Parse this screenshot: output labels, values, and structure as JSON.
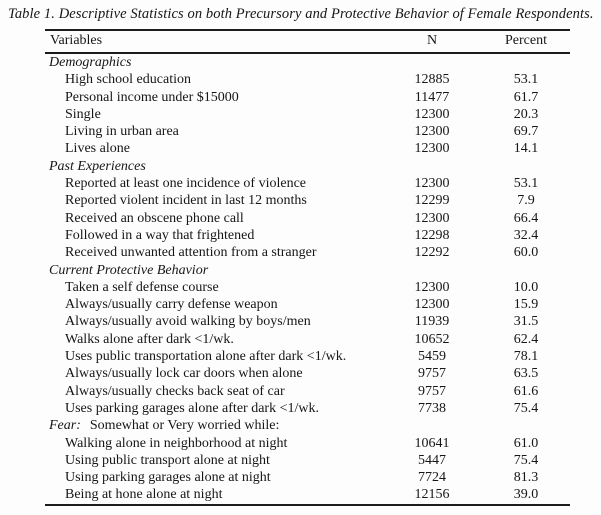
{
  "page": {
    "title": "Table 1. Descriptive Statistics on both Precursory and Protective Behavior of Female Respondents."
  },
  "table": {
    "columns": {
      "variables": "Variables",
      "n": "N",
      "percent": "Percent"
    },
    "sections": [
      {
        "header": "Demographics",
        "rows": [
          {
            "label": "High school education",
            "n": "12885",
            "percent": "53.1"
          },
          {
            "label": "Personal income under $15000",
            "n": "11477",
            "percent": "61.7"
          },
          {
            "label": "Single",
            "n": "12300",
            "percent": "20.3"
          },
          {
            "label": "Living in urban area",
            "n": "12300",
            "percent": "69.7"
          },
          {
            "label": "Lives alone",
            "n": "12300",
            "percent": "14.1"
          }
        ]
      },
      {
        "header": "Past Experiences",
        "rows": [
          {
            "label": "Reported at least one incidence of violence",
            "n": "12300",
            "percent": "53.1"
          },
          {
            "label": "Reported violent incident in last 12 months",
            "n": "12299",
            "percent": "7.9"
          },
          {
            "label": "Received an obscene phone call",
            "n": "12300",
            "percent": "66.4"
          },
          {
            "label": "Followed in a way that frightened",
            "n": "12298",
            "percent": "32.4"
          },
          {
            "label": "Received unwanted attention from a stranger",
            "n": "12292",
            "percent": "60.0"
          }
        ]
      },
      {
        "header": "Current Protective Behavior",
        "rows": [
          {
            "label": "Taken a self defense course",
            "n": "12300",
            "percent": "10.0"
          },
          {
            "label": "Always/usually carry defense weapon",
            "n": "12300",
            "percent": "15.9"
          },
          {
            "label": "Always/usually avoid walking by boys/men",
            "n": "11939",
            "percent": "31.5"
          },
          {
            "label": "Walks alone after dark <1/wk.",
            "n": "10652",
            "percent": "62.4"
          },
          {
            "label": "Uses public transportation alone after dark <1/wk.",
            "n": "5459",
            "percent": "78.1"
          },
          {
            "label": "Always/usually lock car doors when alone",
            "n": "9757",
            "percent": "63.5"
          },
          {
            "label": "Always/usually checks back seat of car",
            "n": "9757",
            "percent": "61.6"
          },
          {
            "label": "Uses parking garages alone after dark <1/wk.",
            "n": "7738",
            "percent": "75.4"
          }
        ]
      },
      {
        "header": "Fear:",
        "header_rest": "Somewhat or Very worried while:",
        "rows": [
          {
            "label": "Walking alone in neighborhood at night",
            "n": "10641",
            "percent": "61.0"
          },
          {
            "label": "Using public transport alone at night",
            "n": "5447",
            "percent": "75.4"
          },
          {
            "label": "Using parking garages alone at night",
            "n": "7724",
            "percent": "81.3"
          },
          {
            "label": "Being at hone alone at night",
            "n": "12156",
            "percent": "39.0"
          }
        ]
      }
    ]
  }
}
